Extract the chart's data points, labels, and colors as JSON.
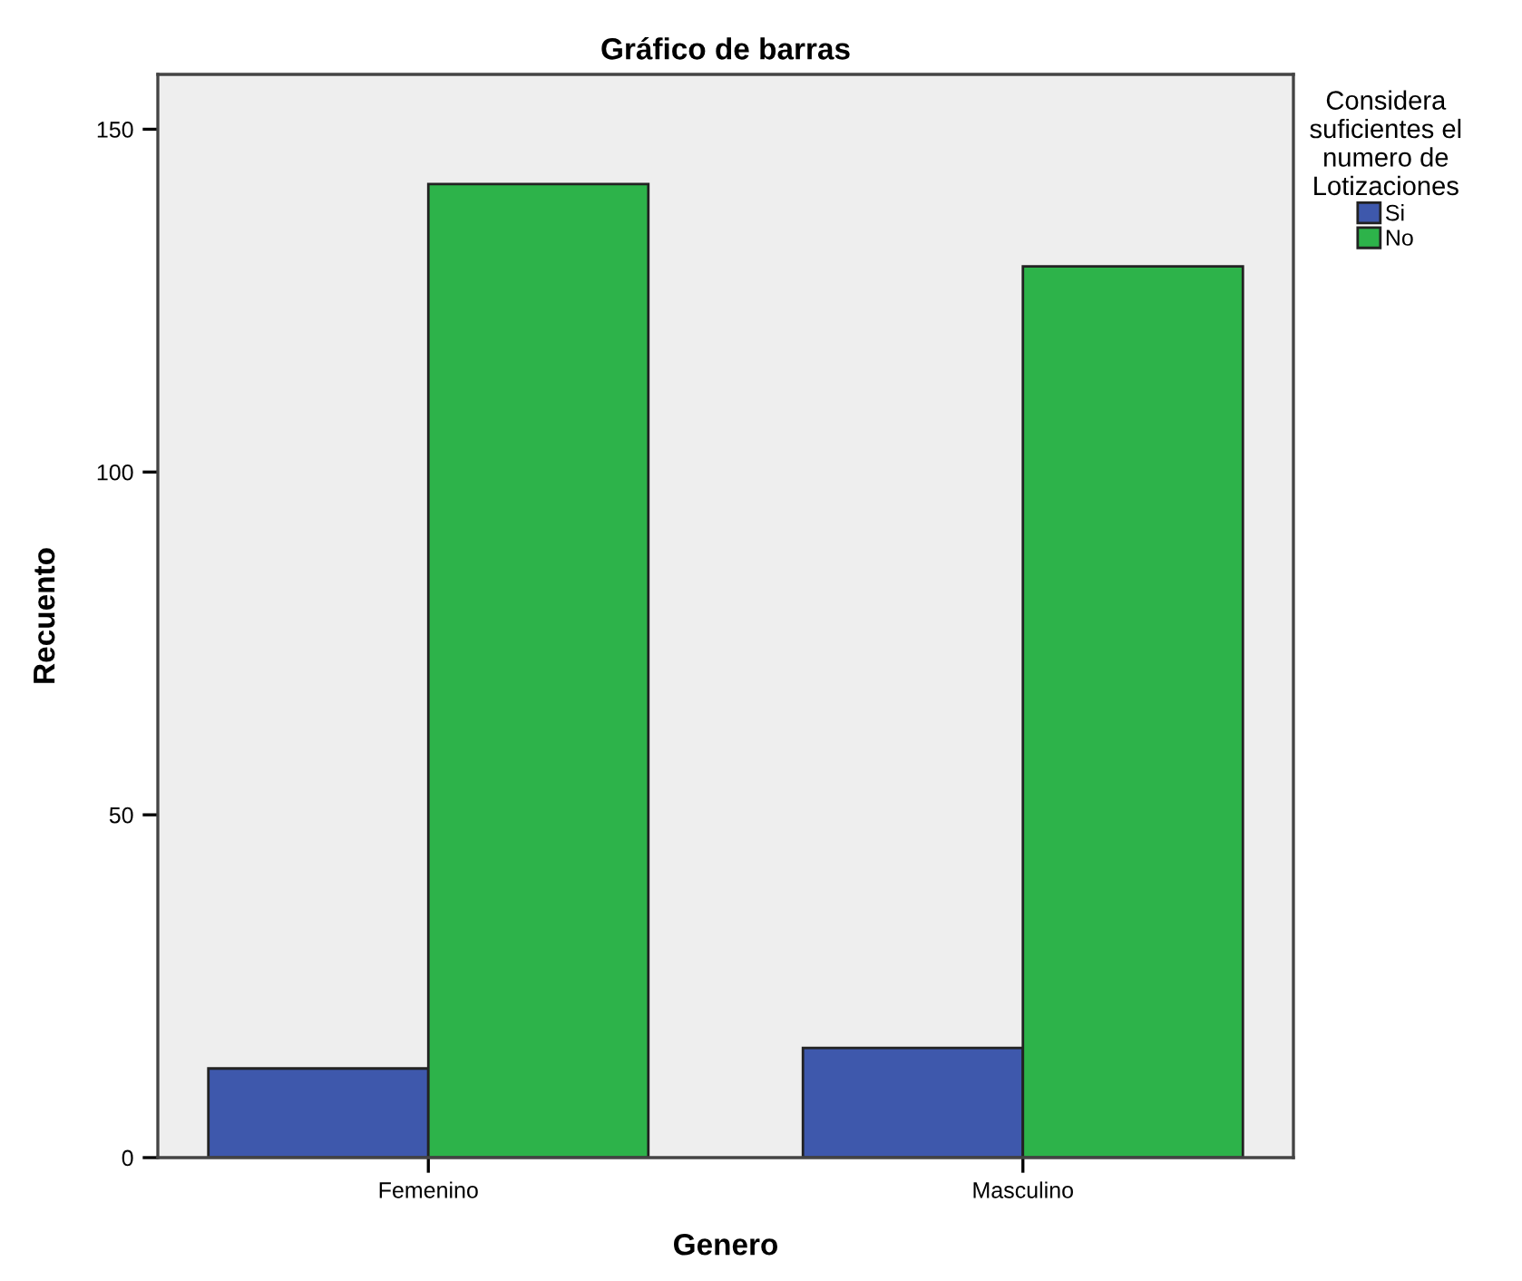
{
  "chart_data": {
    "type": "bar",
    "title": "Gráfico de barras",
    "xlabel": "Genero",
    "ylabel": "Recuento",
    "legend_title": "Considera\nsuficientes el\nnumero de\nLotizaciones",
    "categories": [
      "Femenino",
      "Masculino"
    ],
    "series": [
      {
        "name": "Si",
        "color": "#3e58ac",
        "values": [
          13,
          16
        ]
      },
      {
        "name": "No",
        "color": "#2db34a",
        "values": [
          142,
          130
        ]
      }
    ],
    "ylim": [
      0,
      158
    ],
    "yticks": [
      0,
      50,
      100,
      150
    ],
    "grid": false,
    "legend": "top right"
  }
}
